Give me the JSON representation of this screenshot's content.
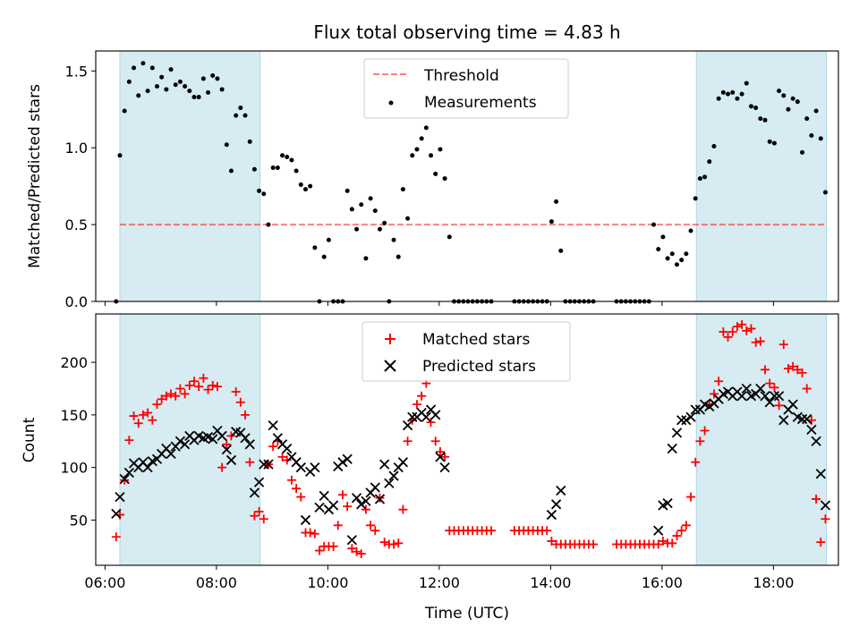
{
  "title": "Flux total observing time = 4.83 h",
  "colors": {
    "band": "#add8e6",
    "threshold": "#ff0000",
    "measurement": "#000000",
    "matched": "#ff0000",
    "predicted": "#000000"
  },
  "chart_data": [
    {
      "type": "scatter",
      "ylabel": "Matched/Predicted stars",
      "ylim": [
        0,
        1.63
      ],
      "yticks": [
        0,
        0.5,
        1,
        1.5
      ],
      "ytick_labels": [
        "0.0",
        "0.5",
        "1.0",
        "1.5"
      ],
      "xlim": [
        "05:50",
        "19:10"
      ],
      "xticks": [
        "06:00",
        "08:00",
        "10:00",
        "12:00",
        "14:00",
        "16:00",
        "18:00"
      ],
      "tick_labels_shown": false,
      "legend_position": "top-center",
      "shaded_bands": [
        [
          "06:16",
          "08:47"
        ],
        [
          "16:37",
          "18:57"
        ]
      ],
      "threshold": {
        "name": "Threshold",
        "value": 0.5,
        "range": [
          "06:16",
          "18:57"
        ]
      },
      "series": [
        {
          "name": "Measurements",
          "x": [
            "06:12",
            "06:16",
            "06:21",
            "06:26",
            "06:31",
            "06:36",
            "06:41",
            "06:46",
            "06:51",
            "06:56",
            "07:01",
            "07:06",
            "07:11",
            "07:16",
            "07:21",
            "07:26",
            "07:31",
            "07:36",
            "07:41",
            "07:46",
            "07:51",
            "07:56",
            "08:01",
            "08:06",
            "08:11",
            "08:16",
            "08:21",
            "08:26",
            "08:31",
            "08:36",
            "08:41",
            "08:46",
            "08:51",
            "08:56",
            "09:01",
            "09:06",
            "09:11",
            "09:16",
            "09:21",
            "09:26",
            "09:31",
            "09:36",
            "09:41",
            "09:46",
            "09:51",
            "09:56",
            "10:01",
            "10:06",
            "10:11",
            "10:16",
            "10:21",
            "10:26",
            "10:31",
            "10:36",
            "10:41",
            "10:46",
            "10:51",
            "10:56",
            "11:01",
            "11:06",
            "11:11",
            "11:16",
            "11:21",
            "11:26",
            "11:31",
            "11:36",
            "11:41",
            "11:46",
            "11:51",
            "11:56",
            "12:01",
            "12:06",
            "12:11",
            "12:16",
            "12:21",
            "12:26",
            "12:31",
            "12:36",
            "12:41",
            "12:46",
            "12:51",
            "12:56",
            "13:21",
            "13:26",
            "13:31",
            "13:36",
            "13:41",
            "13:46",
            "13:51",
            "13:56",
            "14:01",
            "14:06",
            "14:11",
            "14:16",
            "14:21",
            "14:26",
            "14:31",
            "14:36",
            "14:41",
            "14:46",
            "15:11",
            "15:16",
            "15:21",
            "15:26",
            "15:31",
            "15:36",
            "15:41",
            "15:46",
            "15:51",
            "15:56",
            "16:01",
            "16:06",
            "16:11",
            "16:16",
            "16:21",
            "16:26",
            "16:31",
            "16:36",
            "16:41",
            "16:46",
            "16:51",
            "16:56",
            "17:01",
            "17:06",
            "17:11",
            "17:16",
            "17:21",
            "17:26",
            "17:31",
            "17:36",
            "17:41",
            "17:46",
            "17:51",
            "17:56",
            "18:01",
            "18:06",
            "18:11",
            "18:16",
            "18:21",
            "18:26",
            "18:31",
            "18:36",
            "18:41",
            "18:46",
            "18:51",
            "18:56"
          ],
          "y": [
            0.0,
            0.95,
            1.24,
            1.43,
            1.52,
            1.34,
            1.55,
            1.37,
            1.52,
            1.4,
            1.46,
            1.38,
            1.51,
            1.41,
            1.43,
            1.4,
            1.37,
            1.33,
            1.33,
            1.45,
            1.36,
            1.47,
            1.45,
            1.38,
            1.02,
            0.85,
            1.21,
            1.26,
            1.21,
            1.04,
            0.86,
            0.72,
            0.7,
            0.5,
            0.87,
            0.87,
            0.95,
            0.94,
            0.92,
            0.85,
            0.76,
            0.73,
            0.75,
            0.35,
            0.0,
            0.29,
            0.4,
            0.0,
            0.0,
            0.0,
            0.72,
            0.6,
            0.47,
            0.63,
            0.28,
            0.67,
            0.59,
            0.47,
            0.51,
            0.0,
            0.4,
            0.29,
            0.73,
            0.54,
            0.95,
            0.99,
            1.06,
            1.13,
            0.95,
            0.83,
            0.99,
            0.8,
            0.42,
            0.0,
            0.0,
            0.0,
            0.0,
            0.0,
            0.0,
            0.0,
            0.0,
            0.0,
            0.0,
            0.0,
            0.0,
            0.0,
            0.0,
            0.0,
            0.0,
            0.0,
            0.52,
            0.65,
            0.33,
            0.0,
            0.0,
            0.0,
            0.0,
            0.0,
            0.0,
            0.0,
            0.0,
            0.0,
            0.0,
            0.0,
            0.0,
            0.0,
            0.0,
            0.0,
            0.5,
            0.34,
            0.42,
            0.28,
            0.31,
            0.24,
            0.27,
            0.31,
            0.46,
            0.67,
            0.8,
            0.81,
            0.91,
            1.01,
            1.32,
            1.36,
            1.35,
            1.36,
            1.32,
            1.35,
            1.42,
            1.27,
            1.26,
            1.19,
            1.18,
            1.04,
            1.03,
            1.37,
            1.34,
            1.25,
            1.32,
            1.3,
            0.97,
            1.19,
            1.08,
            1.24,
            1.06,
            0.71
          ]
        }
      ]
    },
    {
      "type": "scatter",
      "xlabel": "Time (UTC)",
      "ylabel": "Count",
      "ylim": [
        7,
        246
      ],
      "yticks": [
        50,
        100,
        150,
        200
      ],
      "ytick_labels": [
        "50",
        "100",
        "150",
        "200"
      ],
      "xlim": [
        "05:50",
        "19:10"
      ],
      "xticks": [
        "06:00",
        "08:00",
        "10:00",
        "12:00",
        "14:00",
        "16:00",
        "18:00"
      ],
      "xtick_labels": [
        "06:00",
        "08:00",
        "10:00",
        "12:00",
        "14:00",
        "16:00",
        "18:00"
      ],
      "legend_position": "top-center",
      "shaded_bands": [
        [
          "06:16",
          "08:47"
        ],
        [
          "16:37",
          "18:57"
        ]
      ],
      "series": [
        {
          "name": "Matched stars",
          "marker": "plus",
          "x": [
            "06:12",
            "06:16",
            "06:21",
            "06:26",
            "06:31",
            "06:36",
            "06:41",
            "06:46",
            "06:51",
            "06:56",
            "07:01",
            "07:06",
            "07:11",
            "07:16",
            "07:21",
            "07:26",
            "07:31",
            "07:36",
            "07:41",
            "07:46",
            "07:51",
            "07:56",
            "08:01",
            "08:06",
            "08:11",
            "08:16",
            "08:21",
            "08:26",
            "08:31",
            "08:36",
            "08:41",
            "08:46",
            "08:51",
            "08:56",
            "09:01",
            "09:06",
            "09:11",
            "09:16",
            "09:21",
            "09:26",
            "09:31",
            "09:36",
            "09:41",
            "09:46",
            "09:51",
            "09:56",
            "10:01",
            "10:06",
            "10:11",
            "10:16",
            "10:21",
            "10:26",
            "10:31",
            "10:36",
            "10:41",
            "10:46",
            "10:51",
            "10:56",
            "11:01",
            "11:06",
            "11:11",
            "11:16",
            "11:21",
            "11:26",
            "11:31",
            "11:36",
            "11:41",
            "11:46",
            "11:51",
            "11:56",
            "12:01",
            "12:06",
            "12:11",
            "12:16",
            "12:21",
            "12:26",
            "12:31",
            "12:36",
            "12:41",
            "12:46",
            "12:51",
            "12:56",
            "13:21",
            "13:26",
            "13:31",
            "13:36",
            "13:41",
            "13:46",
            "13:51",
            "13:56",
            "14:01",
            "14:06",
            "14:11",
            "14:16",
            "14:21",
            "14:26",
            "14:31",
            "14:36",
            "14:41",
            "14:46",
            "15:11",
            "15:16",
            "15:21",
            "15:26",
            "15:31",
            "15:36",
            "15:41",
            "15:46",
            "15:51",
            "15:56",
            "16:01",
            "16:06",
            "16:11",
            "16:16",
            "16:21",
            "16:26",
            "16:31",
            "16:36",
            "16:41",
            "16:46",
            "16:51",
            "16:56",
            "17:01",
            "17:06",
            "17:11",
            "17:16",
            "17:21",
            "17:26",
            "17:31",
            "17:36",
            "17:41",
            "17:46",
            "17:51",
            "17:56",
            "18:01",
            "18:06",
            "18:11",
            "18:16",
            "18:21",
            "18:26",
            "18:31",
            "18:36",
            "18:41",
            "18:46",
            "18:51",
            "18:56"
          ],
          "y": [
            34,
            55,
            88,
            126,
            149,
            142,
            150,
            152,
            145,
            160,
            165,
            168,
            170,
            168,
            175,
            170,
            178,
            182,
            177,
            185,
            174,
            178,
            177,
            100,
            122,
            130,
            172,
            162,
            150,
            105,
            54,
            58,
            51,
            103,
            120,
            125,
            110,
            107,
            88,
            80,
            72,
            38,
            38,
            37,
            21,
            25,
            25,
            25,
            45,
            74,
            63,
            23,
            20,
            18,
            60,
            45,
            40,
            71,
            29,
            27,
            27,
            28,
            60,
            125,
            145,
            160,
            168,
            180,
            143,
            125,
            115,
            110,
            40,
            40,
            40,
            40,
            40,
            40,
            40,
            40,
            40,
            40,
            40,
            40,
            40,
            40,
            40,
            40,
            40,
            40,
            30,
            27,
            27,
            27,
            27,
            27,
            27,
            27,
            27,
            27,
            27,
            27,
            27,
            27,
            27,
            27,
            27,
            27,
            27,
            27,
            30,
            28,
            28,
            35,
            40,
            45,
            72,
            105,
            125,
            135,
            160,
            170,
            182,
            229,
            224,
            229,
            234,
            236,
            230,
            232,
            219,
            220,
            193,
            180,
            176,
            159,
            217,
            194,
            196,
            193,
            190,
            175,
            145,
            70,
            29,
            51
          ]
        },
        {
          "name": "Predicted stars",
          "marker": "x",
          "x": [
            "06:12",
            "06:16",
            "06:21",
            "06:26",
            "06:31",
            "06:36",
            "06:41",
            "06:46",
            "06:51",
            "06:56",
            "07:01",
            "07:06",
            "07:11",
            "07:16",
            "07:21",
            "07:26",
            "07:31",
            "07:36",
            "07:41",
            "07:46",
            "07:51",
            "07:56",
            "08:01",
            "08:06",
            "08:11",
            "08:16",
            "08:21",
            "08:26",
            "08:31",
            "08:36",
            "08:41",
            "08:46",
            "08:51",
            "08:56",
            "09:01",
            "09:06",
            "09:11",
            "09:16",
            "09:21",
            "09:26",
            "09:31",
            "09:36",
            "09:41",
            "09:46",
            "09:51",
            "09:56",
            "10:01",
            "10:06",
            "10:11",
            "10:16",
            "10:21",
            "10:26",
            "10:31",
            "10:36",
            "10:41",
            "10:46",
            "10:51",
            "10:56",
            "11:01",
            "11:06",
            "11:11",
            "11:16",
            "11:21",
            "11:26",
            "11:31",
            "11:36",
            "11:41",
            "11:46",
            "11:51",
            "11:56",
            "12:01",
            "12:06",
            "14:01",
            "14:06",
            "14:11",
            "15:56",
            "16:01",
            "16:06",
            "16:11",
            "16:16",
            "16:21",
            "16:26",
            "16:31",
            "16:36",
            "16:41",
            "16:46",
            "16:51",
            "16:56",
            "17:01",
            "17:06",
            "17:11",
            "17:16",
            "17:21",
            "17:26",
            "17:31",
            "17:36",
            "17:41",
            "17:46",
            "17:51",
            "17:56",
            "18:01",
            "18:06",
            "18:11",
            "18:16",
            "18:21",
            "18:26",
            "18:31",
            "18:36",
            "18:41",
            "18:46",
            "18:51",
            "18:56"
          ],
          "y": [
            56,
            72,
            89,
            95,
            104,
            100,
            105,
            100,
            106,
            108,
            113,
            118,
            113,
            120,
            125,
            122,
            130,
            126,
            130,
            128,
            129,
            127,
            135,
            130,
            117,
            107,
            134,
            133,
            128,
            122,
            76,
            86,
            103,
            103,
            140,
            128,
            122,
            118,
            110,
            105,
            100,
            50,
            96,
            100,
            62,
            73,
            60,
            64,
            101,
            105,
            108,
            31,
            71,
            65,
            68,
            76,
            81,
            70,
            103,
            85,
            92,
            100,
            105,
            140,
            148,
            148,
            152,
            148,
            155,
            150,
            110,
            100,
            55,
            65,
            78,
            40,
            64,
            66,
            118,
            133,
            145,
            145,
            148,
            155,
            155,
            160,
            158,
            161,
            165,
            170,
            172,
            168,
            172,
            168,
            175,
            168,
            170,
            175,
            168,
            162,
            168,
            168,
            145,
            155,
            160,
            148,
            146,
            146,
            136,
            125,
            94,
            64
          ]
        }
      ]
    }
  ],
  "legend": {
    "top": [
      {
        "label": "Threshold"
      },
      {
        "label": "Measurements"
      }
    ],
    "bottom": [
      {
        "label": "Matched stars"
      },
      {
        "label": "Predicted stars"
      }
    ]
  }
}
